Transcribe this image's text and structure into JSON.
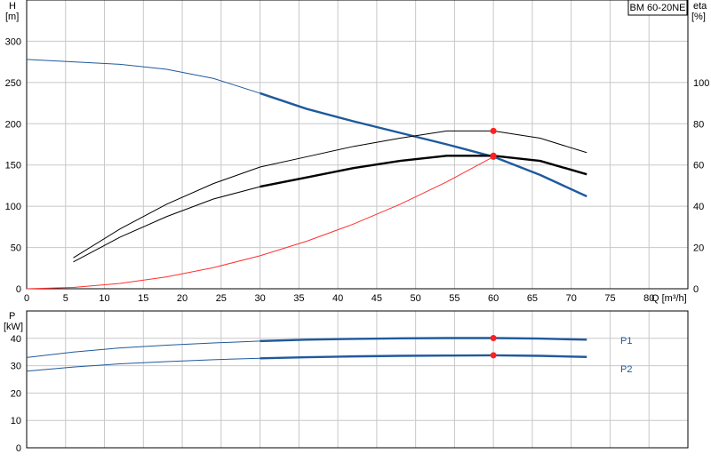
{
  "model_label": "BM 60-20NE",
  "chart_data": [
    {
      "type": "line",
      "id": "head-efficiency",
      "x_label": "Q [m³/h]",
      "y_left_label": [
        "H",
        "[m]"
      ],
      "y_right_label": [
        "eta",
        "[%]"
      ],
      "xlim": [
        0,
        85
      ],
      "x_ticks": [
        0,
        5,
        10,
        15,
        20,
        25,
        30,
        35,
        40,
        45,
        50,
        55,
        60,
        65,
        70,
        75,
        80
      ],
      "x_tick_labels": [
        "0",
        "5",
        "10",
        "15",
        "20",
        "25",
        "30",
        "35",
        "40",
        "45",
        "50",
        "55",
        "60",
        "65",
        "70",
        "75",
        "80"
      ],
      "ylim_left": [
        0,
        350
      ],
      "y_left_ticks": [
        0,
        50,
        100,
        150,
        200,
        250,
        300
      ],
      "y_left_tick_labels": [
        "0",
        "50",
        "100",
        "150",
        "200",
        "250",
        "300"
      ],
      "ylim_right": [
        0,
        140
      ],
      "y_right_ticks": [
        0,
        20,
        40,
        60,
        80,
        100
      ],
      "y_right_tick_labels": [
        "0",
        "20",
        "40",
        "60",
        "80",
        "100"
      ],
      "grid": true,
      "series": [
        {
          "key": "head",
          "axis": "left",
          "color": "#1f5a9c",
          "x": [
            0,
            6,
            12,
            18,
            24,
            30,
            36,
            42,
            48,
            54,
            60,
            66,
            72
          ],
          "y": [
            278,
            275,
            272,
            266,
            255,
            237,
            218,
            203,
            189,
            175,
            160,
            138,
            112
          ],
          "highlight_from": 30
        },
        {
          "key": "eta-upper",
          "axis": "right",
          "color": "#000000",
          "x": [
            6,
            12,
            18,
            24,
            30,
            36,
            42,
            48,
            54,
            60,
            66,
            72
          ],
          "y": [
            15,
            29,
            41,
            51,
            59,
            64,
            69,
            73,
            76.5,
            76.5,
            73,
            66
          ]
        },
        {
          "key": "eta-lower",
          "axis": "right",
          "color": "#000000",
          "x": [
            6,
            12,
            18,
            24,
            30,
            36,
            42,
            48,
            54,
            60,
            66,
            72
          ],
          "y": [
            13,
            25,
            35,
            43.5,
            49.5,
            54,
            58.5,
            62,
            64.5,
            64.5,
            62,
            55.5
          ],
          "highlight_from": 30
        },
        {
          "key": "system-curve",
          "axis": "left",
          "color": "#ff3030",
          "x": [
            0,
            6,
            12,
            18,
            24,
            30,
            36,
            42,
            48,
            54,
            60
          ],
          "y": [
            0,
            1.6,
            6.4,
            14.4,
            25.6,
            40,
            57.6,
            78.4,
            102.4,
            129.6,
            160
          ]
        }
      ],
      "markers": [
        {
          "axis": "left",
          "x": 60,
          "y": 160,
          "color": "#ff2020"
        },
        {
          "axis": "right",
          "x": 60,
          "y": 76.5,
          "color": "#ff2020"
        },
        {
          "axis": "right",
          "x": 60,
          "y": 64.5,
          "color": "#ff2020"
        }
      ]
    },
    {
      "type": "line",
      "id": "power",
      "y_left_label": [
        "P",
        "[kW]"
      ],
      "xlim": [
        0,
        85
      ],
      "x_ticks": [
        0,
        5,
        10,
        15,
        20,
        25,
        30,
        35,
        40,
        45,
        50,
        55,
        60,
        65,
        70,
        75,
        80
      ],
      "ylim_left": [
        0,
        50
      ],
      "y_left_ticks": [
        0,
        10,
        20,
        30,
        40
      ],
      "y_left_tick_labels": [
        "0",
        "10",
        "20",
        "30",
        "40"
      ],
      "grid": true,
      "series": [
        {
          "key": "P1",
          "name": "P1",
          "axis": "left",
          "color": "#1f5a9c",
          "x": [
            0,
            6,
            12,
            18,
            24,
            30,
            36,
            42,
            48,
            54,
            60,
            66,
            72
          ],
          "y": [
            33,
            35,
            36.5,
            37.5,
            38.3,
            39,
            39.5,
            39.8,
            40,
            40.1,
            40.1,
            39.9,
            39.5
          ],
          "highlight_from": 30
        },
        {
          "key": "P2",
          "name": "P2",
          "axis": "left",
          "color": "#1f5a9c",
          "x": [
            0,
            6,
            12,
            18,
            24,
            30,
            36,
            42,
            48,
            54,
            60,
            66,
            72
          ],
          "y": [
            28,
            29.5,
            30.7,
            31.5,
            32.2,
            32.7,
            33.1,
            33.4,
            33.6,
            33.7,
            33.8,
            33.6,
            33.2
          ],
          "highlight_from": 30
        }
      ],
      "markers": [
        {
          "axis": "left",
          "x": 60,
          "y": 40.1,
          "color": "#ff2020"
        },
        {
          "axis": "left",
          "x": 60,
          "y": 33.8,
          "color": "#ff2020"
        }
      ]
    }
  ]
}
